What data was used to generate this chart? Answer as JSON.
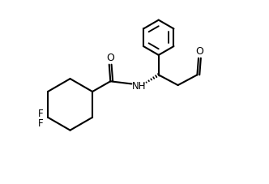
{
  "background_color": "#ffffff",
  "line_color": "#000000",
  "line_width": 1.5,
  "figsize": [
    3.32,
    2.28
  ],
  "dpi": 100,
  "xlim": [
    0,
    10
  ],
  "ylim": [
    0,
    7
  ]
}
